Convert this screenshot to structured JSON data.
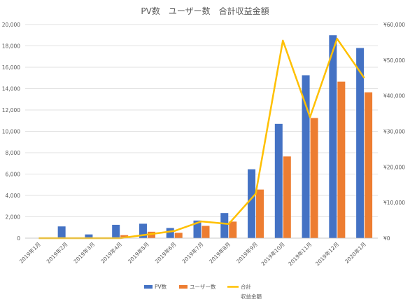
{
  "chart_data": {
    "type": "bar",
    "title": "PV数　ユーザー数　合計収益金額",
    "categories": [
      "2019年1月",
      "2019年2月",
      "2019年3月",
      "2019年4月",
      "2019年5月",
      "2019年6月",
      "2019年7月",
      "2019年8月",
      "2019年9月",
      "2019年10月",
      "2019年11月",
      "2019年12月",
      "2020年1月"
    ],
    "series": [
      {
        "name": "PV数",
        "type": "bar",
        "axis": "left",
        "color": "#4472C4",
        "values": [
          0,
          1100,
          350,
          1250,
          1350,
          950,
          1650,
          2350,
          6450,
          10700,
          15250,
          19000,
          17800
        ]
      },
      {
        "name": "ユーザー数",
        "type": "bar",
        "axis": "left",
        "color": "#ED7D31",
        "values": [
          0,
          0,
          0,
          280,
          600,
          500,
          1150,
          1550,
          4550,
          7650,
          11250,
          14650,
          13650
        ]
      },
      {
        "name": "合計",
        "type": "line",
        "axis": "right",
        "color": "#FFC000",
        "values": [
          0,
          0,
          0,
          0,
          1000,
          2000,
          4700,
          4000,
          12500,
          55500,
          34000,
          56000,
          45000
        ]
      }
    ],
    "y_left": {
      "min": 0,
      "max": 20000,
      "step": 2000,
      "ticks": [
        "0",
        "2,000",
        "4,000",
        "6,000",
        "8,000",
        "10,000",
        "12,000",
        "14,000",
        "16,000",
        "18,000",
        "20,000"
      ]
    },
    "y_right": {
      "min": 0,
      "max": 60000,
      "step": 10000,
      "ticks": [
        "¥0",
        "¥10,000",
        "¥20,000",
        "¥30,000",
        "¥40,000",
        "¥50,000",
        "¥60,000"
      ]
    },
    "grid": true,
    "legend_position": "bottom",
    "legend": [
      "PV数",
      "ユーザー数",
      "合計"
    ],
    "legend_subtitle": "収益金額"
  }
}
